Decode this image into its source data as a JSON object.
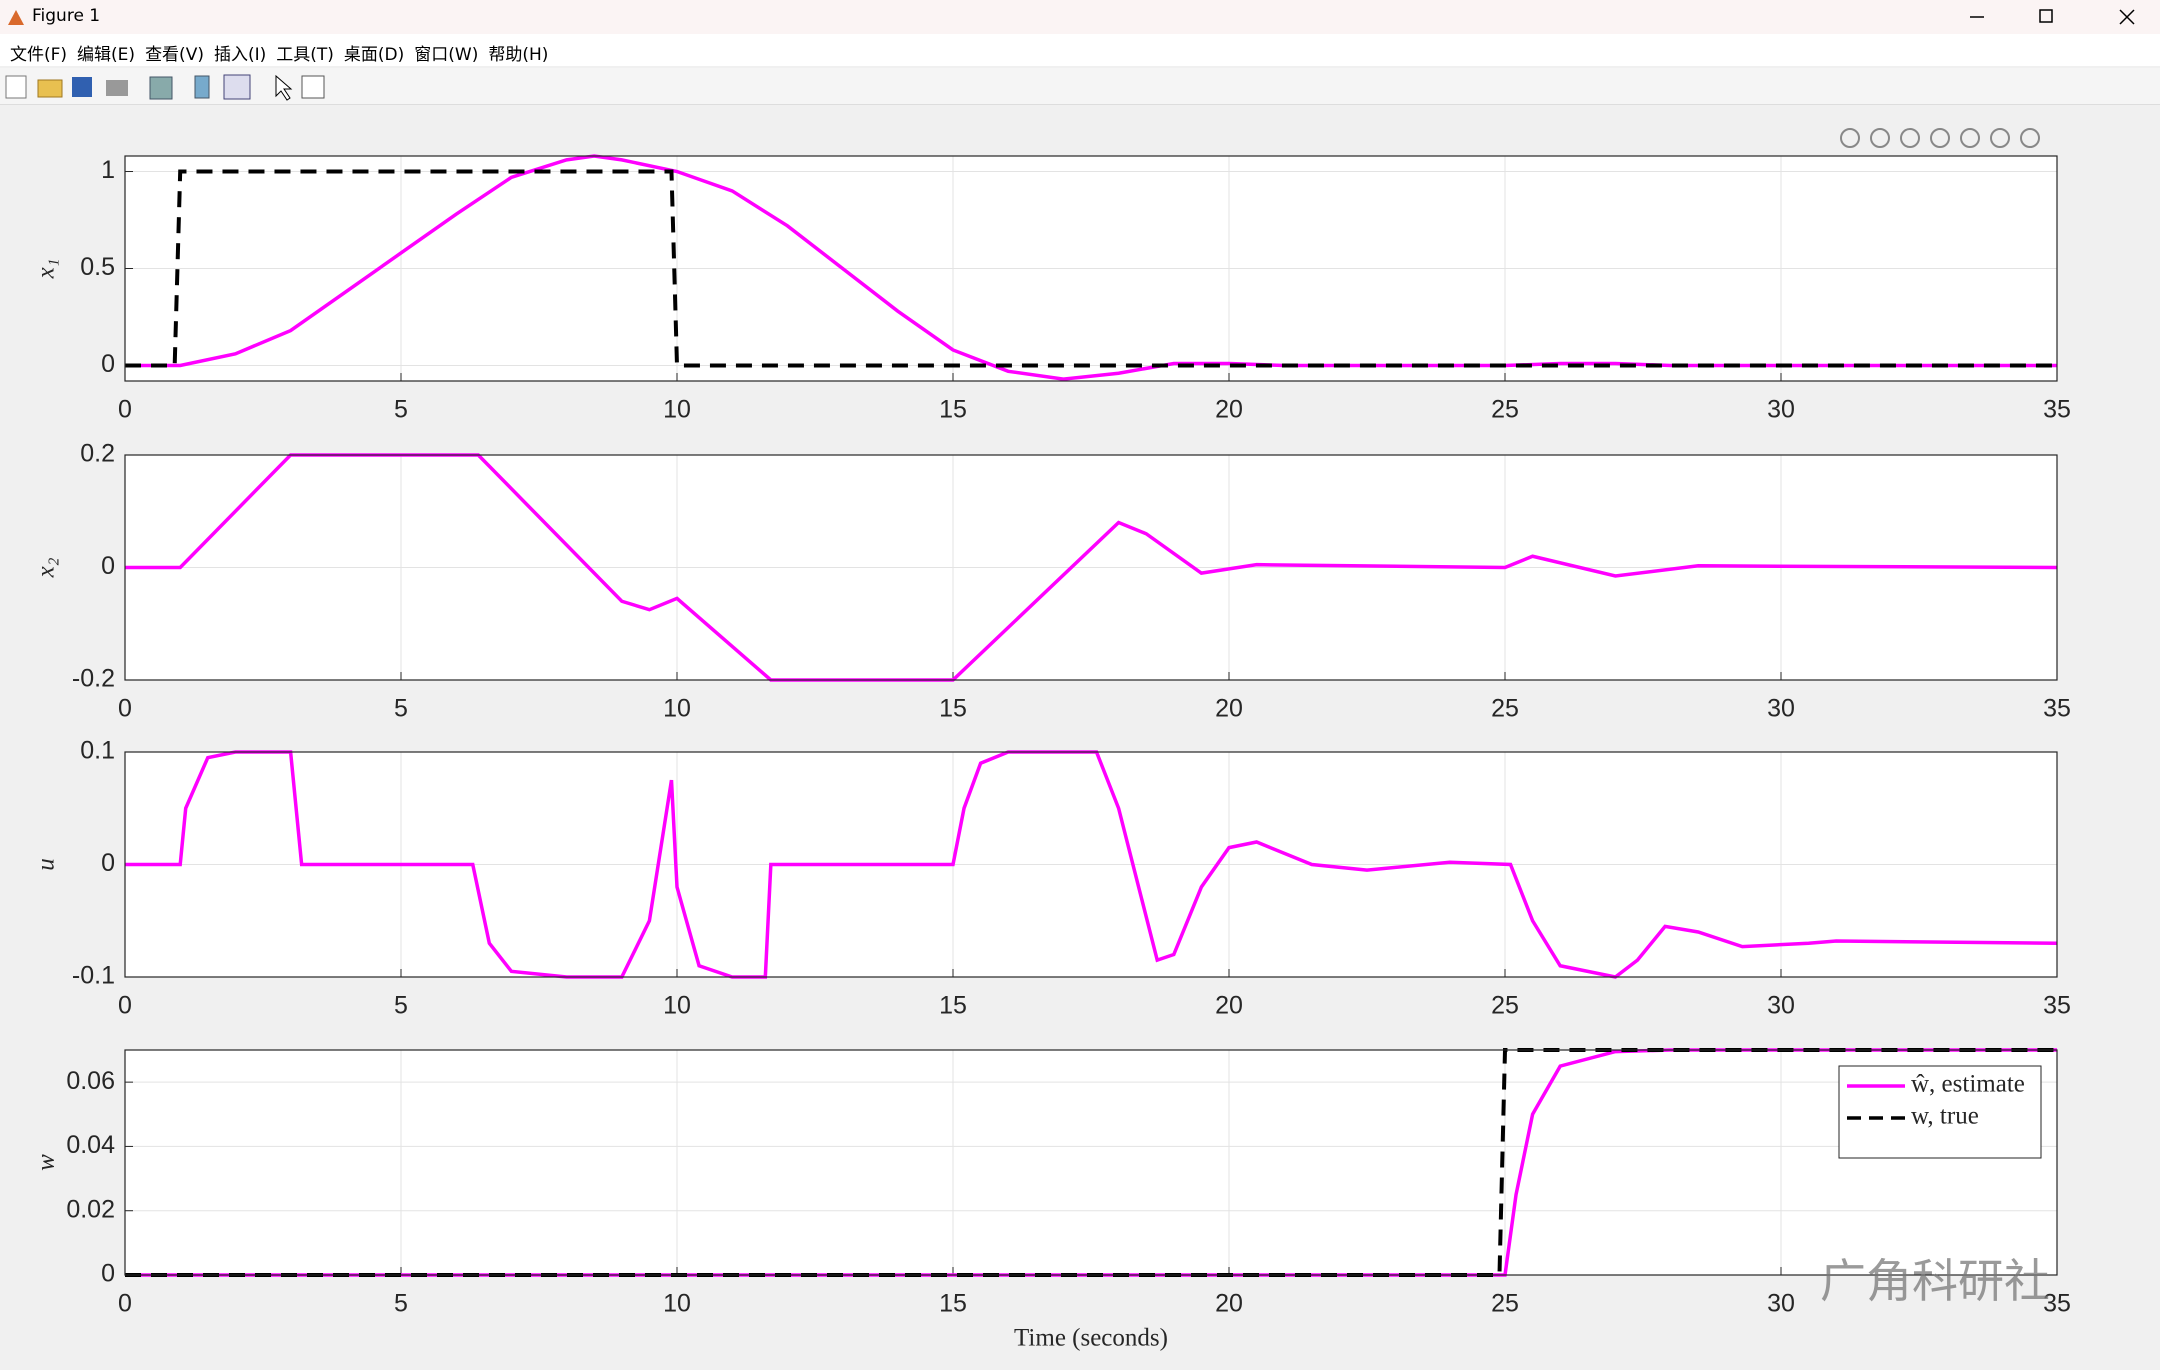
{
  "window": {
    "title": "Figure 1",
    "menu": [
      "文件(F)",
      "编辑(E)",
      "查看(V)",
      "插入(I)",
      "工具(T)",
      "桌面(D)",
      "窗口(W)",
      "帮助(H)"
    ],
    "watermark": "广角科研社"
  },
  "chart_data": [
    {
      "type": "line",
      "ylabel": "x₁",
      "xlim": [
        0,
        35
      ],
      "xticks": [
        0,
        5,
        10,
        15,
        20,
        25,
        30,
        35
      ],
      "ylim": [
        -0.08,
        1.08
      ],
      "yticks": [
        0,
        0.5,
        1
      ],
      "grid": true,
      "series": [
        {
          "color": "#ff00ff",
          "dash": "solid",
          "x": [
            0,
            1,
            2,
            3,
            4,
            5,
            6,
            7,
            8,
            8.5,
            9,
            10,
            11,
            12,
            13,
            14,
            15,
            16,
            17,
            18,
            19,
            20,
            21,
            25,
            26,
            27,
            28,
            35
          ],
          "values": [
            0,
            0,
            0.06,
            0.18,
            0.38,
            0.58,
            0.78,
            0.97,
            1.06,
            1.08,
            1.06,
            1.0,
            0.9,
            0.72,
            0.5,
            0.28,
            0.08,
            -0.03,
            -0.07,
            -0.04,
            0.01,
            0.01,
            0,
            0,
            0.01,
            0.01,
            0,
            0
          ]
        },
        {
          "color": "#000000",
          "dash": "dashed",
          "x": [
            0,
            0.9,
            1.0,
            9.9,
            10.0,
            35
          ],
          "values": [
            0,
            0,
            1,
            1,
            0,
            0
          ]
        }
      ]
    },
    {
      "type": "line",
      "ylabel": "x₂",
      "xlim": [
        0,
        35
      ],
      "xticks": [
        0,
        5,
        10,
        15,
        20,
        25,
        30,
        35
      ],
      "ylim": [
        -0.2,
        0.2
      ],
      "yticks": [
        -0.2,
        0,
        0.2
      ],
      "grid": true,
      "series": [
        {
          "color": "#ff00ff",
          "dash": "solid",
          "x": [
            0,
            1,
            3,
            6.4,
            9,
            9.5,
            10,
            11.7,
            15,
            18,
            18.5,
            19.5,
            20.5,
            25,
            25.5,
            27,
            28.5,
            35
          ],
          "values": [
            0,
            0,
            0.2,
            0.2,
            -0.06,
            -0.075,
            -0.055,
            -0.2,
            -0.2,
            0.08,
            0.06,
            -0.01,
            0.005,
            0,
            0.02,
            -0.015,
            0.003,
            0
          ]
        }
      ]
    },
    {
      "type": "line",
      "ylabel": "u",
      "xlim": [
        0,
        35
      ],
      "xticks": [
        0,
        5,
        10,
        15,
        20,
        25,
        30,
        35
      ],
      "ylim": [
        -0.1,
        0.1
      ],
      "yticks": [
        -0.1,
        0,
        0.1
      ],
      "grid": true,
      "series": [
        {
          "color": "#ff00ff",
          "dash": "solid",
          "x": [
            0,
            1,
            1.1,
            1.5,
            2,
            3,
            3.2,
            6.3,
            6.6,
            7,
            8,
            9,
            9.5,
            9.9,
            10,
            10.4,
            11,
            11.6,
            11.7,
            15,
            15.2,
            15.5,
            16,
            17.6,
            18,
            18.7,
            19,
            19.5,
            20,
            20.5,
            21.5,
            22.5,
            24,
            25.1,
            25.5,
            26,
            27,
            27.4,
            27.9,
            28.5,
            29.3,
            30.5,
            31,
            35
          ],
          "values": [
            0,
            0,
            0.05,
            0.095,
            0.1,
            0.1,
            0,
            0,
            -0.07,
            -0.095,
            -0.1,
            -0.1,
            -0.05,
            0.075,
            -0.02,
            -0.09,
            -0.1,
            -0.1,
            0,
            0,
            0.05,
            0.09,
            0.1,
            0.1,
            0.05,
            -0.085,
            -0.08,
            -0.02,
            0.015,
            0.02,
            0,
            -0.005,
            0.002,
            0,
            -0.05,
            -0.09,
            -0.1,
            -0.085,
            -0.055,
            -0.06,
            -0.073,
            -0.07,
            -0.068,
            -0.07
          ]
        }
      ]
    },
    {
      "type": "line",
      "ylabel": "w",
      "xlabel": "Time (seconds)",
      "xlim": [
        0,
        35
      ],
      "xticks": [
        0,
        5,
        10,
        15,
        20,
        25,
        30,
        35
      ],
      "ylim": [
        0,
        0.07
      ],
      "yticks": [
        0,
        0.02,
        0.04,
        0.06
      ],
      "grid": true,
      "legend": "upper right",
      "series": [
        {
          "name": "ŵ, estimate",
          "color": "#ff00ff",
          "dash": "solid",
          "x": [
            0,
            25,
            25.2,
            25.5,
            26,
            27,
            28,
            35
          ],
          "values": [
            0,
            0,
            0.025,
            0.05,
            0.065,
            0.0695,
            0.07,
            0.07
          ]
        },
        {
          "name": "w, true",
          "color": "#000000",
          "dash": "dashed",
          "x": [
            0,
            24.9,
            25,
            35
          ],
          "values": [
            0,
            0,
            0.07,
            0.07
          ]
        }
      ]
    }
  ]
}
